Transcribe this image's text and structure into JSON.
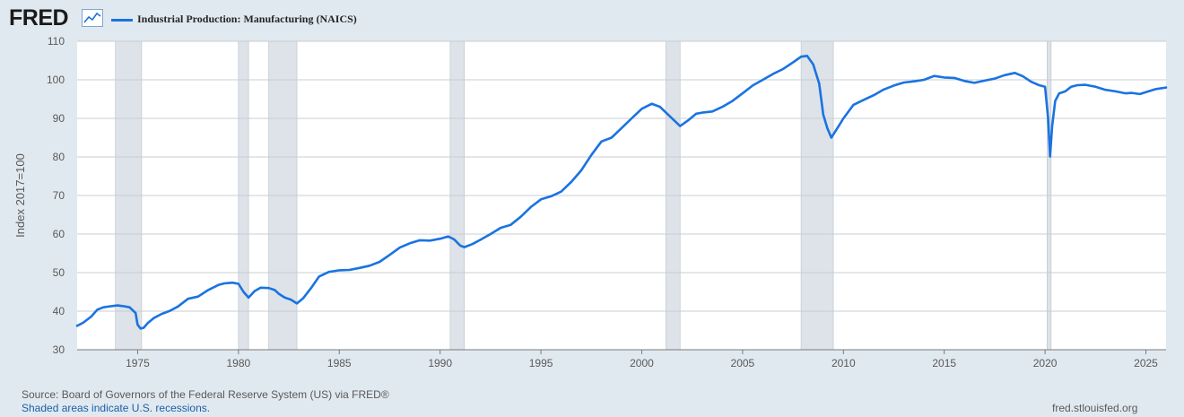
{
  "header": {
    "logo_text": "FRED",
    "logo_icon": "trend-chart-icon",
    "legend_label": "Industrial Production: Manufacturing (NAICS)"
  },
  "colors": {
    "series": "#1a73e0",
    "recession": "#dde3e9",
    "background": "#e1e9f0",
    "plot": "#ffffff",
    "grid": "#c8cdd2"
  },
  "chart_data": {
    "type": "line",
    "title": "",
    "xlabel": "",
    "ylabel": "Index 2017=100",
    "xlim": [
      1972.0,
      2026.0
    ],
    "ylim": [
      30,
      110
    ],
    "yticks": [
      30,
      40,
      50,
      60,
      70,
      80,
      90,
      100,
      110
    ],
    "xticks": [
      "1975",
      "1980",
      "1985",
      "1990",
      "1995",
      "2000",
      "2005",
      "2010",
      "2015",
      "2020",
      "2025"
    ],
    "grid": true,
    "legend": "top-left",
    "recessions": [
      [
        1973.9,
        1975.2
      ],
      [
        1980.0,
        1980.5
      ],
      [
        1981.5,
        1982.9
      ],
      [
        1990.5,
        1991.2
      ],
      [
        2001.2,
        2001.9
      ],
      [
        2007.9,
        2009.5
      ],
      [
        2020.1,
        2020.3
      ]
    ],
    "series": [
      {
        "name": "Industrial Production: Manufacturing (NAICS)",
        "x": [
          1972.0,
          1972.3,
          1972.7,
          1973.0,
          1973.3,
          1973.7,
          1974.0,
          1974.3,
          1974.6,
          1974.9,
          1975.0,
          1975.15,
          1975.3,
          1975.5,
          1975.8,
          1976.2,
          1976.6,
          1977.0,
          1977.5,
          1978.0,
          1978.5,
          1979.0,
          1979.3,
          1979.7,
          1980.0,
          1980.25,
          1980.5,
          1980.8,
          1981.1,
          1981.5,
          1981.8,
          1982.0,
          1982.3,
          1982.6,
          1982.9,
          1983.2,
          1983.6,
          1984.0,
          1984.5,
          1985.0,
          1985.5,
          1986.0,
          1986.5,
          1987.0,
          1987.5,
          1988.0,
          1988.5,
          1989.0,
          1989.5,
          1990.0,
          1990.4,
          1990.7,
          1991.0,
          1991.2,
          1991.6,
          1992.0,
          1992.5,
          1993.0,
          1993.5,
          1994.0,
          1994.5,
          1995.0,
          1995.5,
          1996.0,
          1996.5,
          1997.0,
          1997.5,
          1998.0,
          1998.5,
          1999.0,
          1999.5,
          2000.0,
          2000.5,
          2000.9,
          2001.3,
          2001.6,
          2001.9,
          2002.3,
          2002.7,
          2003.0,
          2003.5,
          2004.0,
          2004.5,
          2005.0,
          2005.5,
          2006.0,
          2006.5,
          2007.0,
          2007.5,
          2007.9,
          2008.2,
          2008.5,
          2008.8,
          2009.0,
          2009.2,
          2009.4,
          2009.7,
          2010.0,
          2010.5,
          2011.0,
          2011.5,
          2012.0,
          2012.5,
          2013.0,
          2013.5,
          2014.0,
          2014.5,
          2015.0,
          2015.5,
          2016.0,
          2016.5,
          2017.0,
          2017.5,
          2018.0,
          2018.5,
          2018.9,
          2019.3,
          2019.7,
          2020.0,
          2020.15,
          2020.25,
          2020.35,
          2020.5,
          2020.7,
          2021.0,
          2021.3,
          2021.6,
          2022.0,
          2022.5,
          2023.0,
          2023.5,
          2024.0,
          2024.3,
          2024.7,
          2025.0,
          2025.5,
          2026.0
        ],
        "values": [
          36.2,
          37.0,
          38.6,
          40.4,
          41.0,
          41.3,
          41.5,
          41.3,
          41.0,
          39.5,
          36.5,
          35.5,
          35.7,
          36.9,
          38.2,
          39.3,
          40.1,
          41.2,
          43.2,
          43.8,
          45.5,
          46.8,
          47.2,
          47.4,
          47.1,
          45.0,
          43.5,
          45.2,
          46.1,
          46.0,
          45.5,
          44.5,
          43.5,
          43.0,
          42.0,
          43.3,
          46.0,
          49.0,
          50.2,
          50.6,
          50.7,
          51.2,
          51.8,
          52.8,
          54.6,
          56.5,
          57.6,
          58.4,
          58.3,
          58.8,
          59.4,
          58.6,
          57.0,
          56.6,
          57.4,
          58.5,
          60.0,
          61.6,
          62.4,
          64.5,
          67.0,
          69.0,
          69.8,
          71.0,
          73.5,
          76.5,
          80.5,
          84.0,
          85.0,
          87.5,
          90.0,
          92.5,
          93.8,
          93.0,
          91.0,
          89.5,
          88.0,
          89.5,
          91.2,
          91.5,
          91.8,
          93.0,
          94.5,
          96.5,
          98.5,
          100.0,
          101.5,
          102.8,
          104.5,
          106.0,
          106.2,
          104.0,
          99.0,
          91.0,
          87.5,
          85.0,
          87.5,
          90.0,
          93.5,
          94.8,
          96.0,
          97.5,
          98.5,
          99.3,
          99.6,
          100.0,
          101.0,
          100.6,
          100.5,
          99.7,
          99.2,
          99.8,
          100.3,
          101.2,
          101.8,
          100.9,
          99.5,
          98.6,
          98.2,
          90.0,
          80.1,
          88.0,
          94.5,
          96.5,
          97.0,
          98.2,
          98.6,
          98.7,
          98.2,
          97.4,
          97.0,
          96.5,
          96.6,
          96.3,
          96.8,
          97.6,
          98.0
        ]
      }
    ]
  },
  "footer": {
    "source": "Source: Board of Governors of the Federal Reserve System (US) via FRED®",
    "note": "Shaded areas indicate U.S. recessions.",
    "url": "fred.stlouisfed.org"
  }
}
